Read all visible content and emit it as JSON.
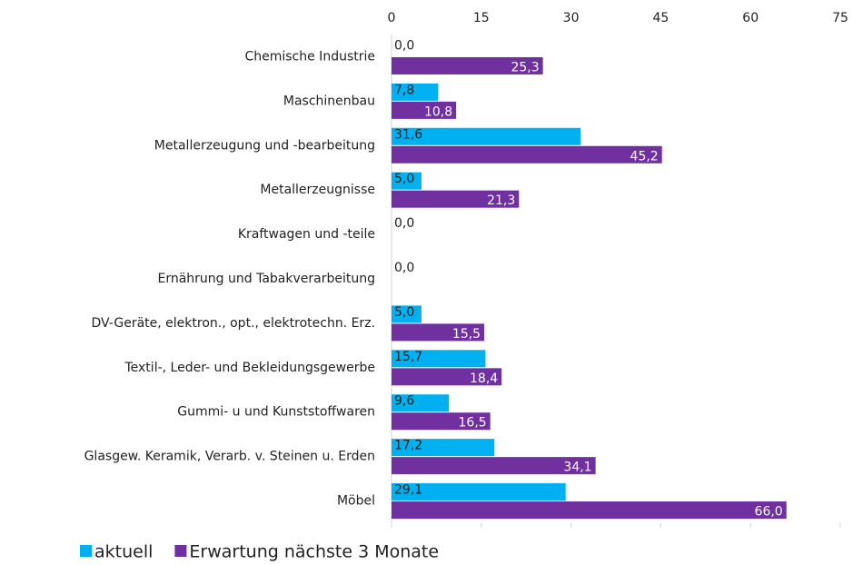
{
  "chart_data": {
    "type": "bar",
    "orientation": "horizontal",
    "categories": [
      "Chemische Industrie",
      "Maschinenbau",
      "Metallerzeugung und -bearbeitung",
      "Metallerzeugnisse",
      "Kraftwagen und -teile",
      "Ernährung und Tabakverarbeitung",
      "DV-Geräte, elektron., opt., elektrotechn. Erz.",
      "Textil-, Leder- und Bekleidungsgewerbe",
      "Gummi- u und Kunststoffwaren",
      "Glasgew. Keramik, Verarb. v. Steinen u. Erden",
      "Möbel"
    ],
    "series": [
      {
        "name": "aktuell",
        "color": "#00b0f0",
        "values": [
          0.0,
          7.8,
          31.6,
          5.0,
          0.0,
          0.0,
          5.0,
          15.7,
          9.6,
          17.2,
          29.1
        ],
        "value_labels": [
          "0,0",
          "7,8",
          "31,6",
          "5,0",
          "0,0",
          "0,0",
          "5,0",
          "15,7",
          "9,6",
          "17,2",
          "29,1"
        ]
      },
      {
        "name": "Erwartung nächste 3 Monate",
        "color": "#7030a0",
        "values": [
          25.3,
          10.8,
          45.2,
          21.3,
          null,
          null,
          15.5,
          18.4,
          16.5,
          34.1,
          66.0
        ],
        "value_labels": [
          "25,3",
          "10,8",
          "45,2",
          "21,3",
          null,
          null,
          "15,5",
          "18,4",
          "16,5",
          "34,1",
          "66,0"
        ]
      }
    ],
    "xlim": [
      0,
      75
    ],
    "xticks": [
      0,
      15,
      30,
      45,
      60,
      75
    ],
    "legend": "bottom-left"
  }
}
